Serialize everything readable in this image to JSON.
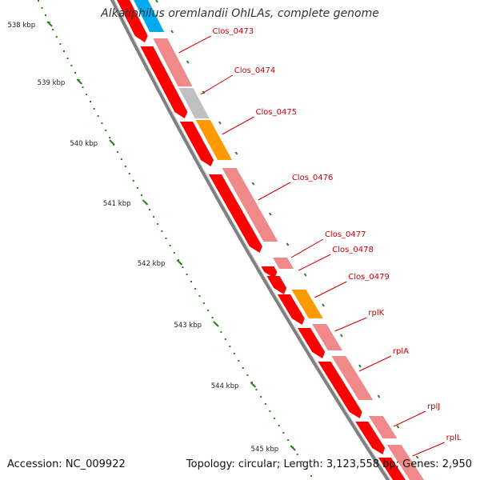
{
  "title": "Alkaliphilus oremlandii OhILAs, complete genome",
  "accession": "Accession: NC_009922",
  "summary": "Topology: circular; Length: 3,123,558 bp; Genes: 2,950",
  "colors": {
    "backbone": "#808080",
    "ruler": "#2e7d1e",
    "cds": "#ff0000",
    "cds_light": "#f08a8a",
    "gray": "#c0c0c0",
    "orange": "#ff9a00",
    "cyan": "#00aaee",
    "label": "#cc0000"
  },
  "ruler_labels": [
    "538 kbp",
    "539 kbp",
    "540 kbp",
    "541 kbp",
    "542 kbp",
    "543 kbp",
    "544 kbp",
    "545 kbp"
  ],
  "gene_labels": [
    "Clos_0473",
    "Clos_0474",
    "Clos_0475",
    "Clos_0476",
    "Clos_0477",
    "Clos_0478",
    "Clos_0479",
    "rplK",
    "rplA",
    "rplJ",
    "rplL"
  ]
}
